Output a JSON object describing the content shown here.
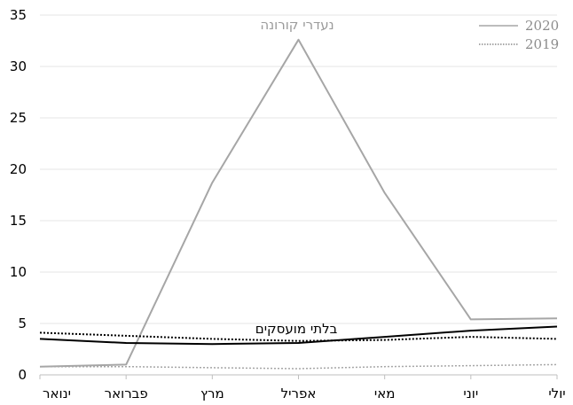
{
  "chart_data": {
    "type": "line",
    "categories": [
      "ינואר",
      "פברואר",
      "מרץ",
      "אפריל",
      "מאי",
      "יוני",
      "יולי"
    ],
    "ylim": [
      0,
      35
    ],
    "yticks": [
      0,
      5,
      10,
      15,
      20,
      25,
      30,
      35
    ],
    "grid": true,
    "legend_position": "top-right",
    "legend": [
      {
        "label": "2020",
        "style": "solid",
        "color": "#a6a6a6"
      },
      {
        "label": "2019",
        "style": "dotted",
        "color": "#a6a6a6"
      }
    ],
    "annotations": [
      {
        "text": "נעדרי קורונה",
        "color": "#9a9a9a"
      },
      {
        "text": "בלתי מועסקים",
        "color": "#000000"
      }
    ],
    "series": [
      {
        "group": "נעדרי קורונה",
        "year": "2020",
        "style": "solid",
        "color": "#a6a6a6",
        "width": 2,
        "values": [
          0.8,
          1.0,
          18.7,
          32.6,
          17.7,
          5.4,
          5.5
        ]
      },
      {
        "group": "נעדרי קורונה",
        "year": "2019",
        "style": "dotted",
        "color": "#a6a6a6",
        "width": 1.5,
        "values": [
          0.8,
          0.8,
          0.7,
          0.6,
          0.8,
          0.9,
          1.0
        ]
      },
      {
        "group": "בלתי מועסקים",
        "year": "2020",
        "style": "solid",
        "color": "#000000",
        "width": 2,
        "values": [
          3.5,
          3.1,
          3.0,
          3.1,
          3.7,
          4.3,
          4.7
        ]
      },
      {
        "group": "בלתי מועסקים",
        "year": "2019",
        "style": "dotted",
        "color": "#000000",
        "width": 2,
        "values": [
          4.1,
          3.8,
          3.5,
          3.3,
          3.4,
          3.7,
          3.5
        ]
      }
    ]
  }
}
